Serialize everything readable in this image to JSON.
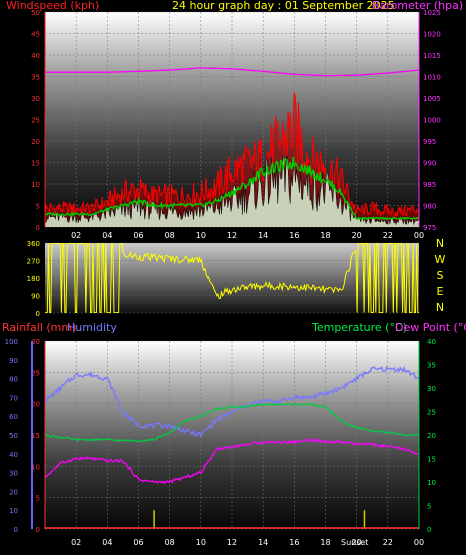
{
  "header": {
    "windspeed_label": "Windspeed (kph)",
    "title": "24 hour graph day : 01 September 2025",
    "barometer_label": "Barometer (hpa)"
  },
  "lower_header": {
    "rainfall_label": "Rainfall (mm)",
    "humidity_label": "Humidity",
    "temperature_label": "Temperature (°C)",
    "dewpoint_label": "Dew Point (°C)"
  },
  "colors": {
    "windspeed": "#ff0000",
    "gust": "#ff0000",
    "average": "#00cc00",
    "barometer": "#ff00ff",
    "direction": "#ffff00",
    "rainfall": "#ff3333",
    "humidity": "#7777ff",
    "temperature": "#00cc44",
    "dewpoint": "#ff00ff",
    "rain_bar": "#cccc00"
  },
  "chart_data": [
    {
      "type": "line",
      "x_ticks": [
        "02",
        "04",
        "06",
        "08",
        "10",
        "12",
        "14",
        "16",
        "18",
        "20",
        "22",
        "00"
      ],
      "wind_axis": {
        "ticks": [
          "0",
          "5",
          "10",
          "15",
          "20",
          "25",
          "30",
          "35",
          "40",
          "45",
          "50"
        ],
        "ylim": [
          0,
          50
        ]
      },
      "baro_axis": {
        "ticks": [
          "975",
          "980",
          "985",
          "990",
          "995",
          "1000",
          "1005",
          "1010",
          "1015",
          "1020",
          "1025"
        ],
        "ylim": [
          975,
          1025
        ]
      },
      "series": [
        {
          "name": "Windspeed (kph)",
          "role": "gust",
          "x": [
            0,
            1,
            2,
            3,
            4,
            5,
            6,
            7,
            8,
            9,
            10,
            11,
            12,
            13,
            14,
            15,
            16,
            17,
            18,
            19,
            20,
            21,
            22,
            23,
            24
          ],
          "values": [
            6,
            6,
            6,
            6,
            8,
            11,
            12,
            10,
            10,
            10,
            11,
            13,
            18,
            20,
            22,
            27,
            32,
            22,
            20,
            15,
            5,
            6,
            5,
            5,
            6
          ]
        },
        {
          "role": "average",
          "x": [
            0,
            1,
            2,
            3,
            4,
            5,
            6,
            7,
            8,
            9,
            10,
            11,
            12,
            13,
            14,
            15,
            16,
            17,
            18,
            19,
            20,
            21,
            22,
            23,
            24
          ],
          "values": [
            3,
            3,
            3,
            3,
            4,
            5,
            6,
            5,
            5,
            5,
            5,
            6,
            8,
            10,
            13,
            14,
            15,
            13,
            11,
            8,
            2,
            2,
            2,
            2,
            2
          ]
        },
        {
          "name": "Barometer (hpa)",
          "role": "barometer",
          "x": [
            0,
            2,
            4,
            6,
            8,
            10,
            12,
            14,
            16,
            18,
            20,
            22,
            24
          ],
          "values": [
            1011,
            1011,
            1011,
            1011.2,
            1011.5,
            1012,
            1011.8,
            1011.2,
            1010.5,
            1010.2,
            1010.3,
            1010.8,
            1011.5
          ]
        }
      ]
    },
    {
      "type": "line",
      "compass_labels": [
        "N",
        "W",
        "S",
        "E",
        "N"
      ],
      "y_ticks": [
        "360",
        "270",
        "180",
        "90",
        "0"
      ],
      "ylim": [
        0,
        360
      ],
      "series": [
        {
          "role": "direction",
          "x": [
            0,
            1,
            2,
            3,
            4,
            5,
            6,
            7,
            8,
            9,
            10,
            11,
            12,
            13,
            14,
            15,
            16,
            17,
            18,
            19,
            20,
            21,
            22,
            23,
            24
          ],
          "values": [
            0,
            0,
            0,
            0,
            0,
            300,
            290,
            285,
            280,
            275,
            275,
            85,
            120,
            135,
            140,
            140,
            135,
            130,
            120,
            115,
            350,
            355,
            355,
            355,
            355
          ]
        }
      ]
    },
    {
      "type": "line",
      "x_ticks": [
        "02",
        "04",
        "06",
        "08",
        "10",
        "12",
        "14",
        "16",
        "18",
        "20",
        "22",
        "00"
      ],
      "overlay_label": "Sunset",
      "humidity_axis": {
        "ticks": [
          "0",
          "10",
          "20",
          "30",
          "40",
          "50",
          "60",
          "70",
          "80",
          "90",
          "100"
        ],
        "ylim": [
          0,
          100
        ]
      },
      "rain_axis": {
        "ticks": [
          "0",
          "5",
          "10",
          "15",
          "20",
          "25",
          "30"
        ],
        "ylim": [
          0,
          30
        ]
      },
      "temp_axis": {
        "ticks": [
          "0",
          "5",
          "10",
          "15",
          "20",
          "25",
          "30",
          "35",
          "40"
        ],
        "ylim": [
          0,
          40
        ]
      },
      "series": [
        {
          "name": "Humidity",
          "x": [
            0,
            1,
            2,
            3,
            4,
            5,
            6,
            7,
            8,
            9,
            10,
            11,
            12,
            13,
            14,
            15,
            16,
            17,
            18,
            19,
            20,
            21,
            22,
            23,
            24
          ],
          "values": [
            68,
            75,
            82,
            82,
            80,
            62,
            55,
            55,
            55,
            52,
            50,
            58,
            62,
            66,
            68,
            68,
            70,
            70,
            72,
            75,
            80,
            85,
            85,
            85,
            80
          ]
        },
        {
          "name": "Temperature (°C)",
          "x": [
            0,
            1,
            2,
            3,
            4,
            5,
            6,
            7,
            8,
            9,
            10,
            11,
            12,
            13,
            14,
            15,
            16,
            17,
            18,
            19,
            20,
            21,
            22,
            23,
            24
          ],
          "values": [
            20,
            19.5,
            19,
            19,
            19,
            18.8,
            18.8,
            19,
            20.5,
            23,
            24,
            25.5,
            26,
            26,
            26.5,
            26.5,
            26.5,
            26.5,
            26,
            23,
            21.5,
            21,
            20.5,
            20,
            20
          ]
        },
        {
          "name": "Dew Point (°C)",
          "x": [
            0,
            1,
            2,
            3,
            4,
            5,
            6,
            7,
            8,
            9,
            10,
            11,
            12,
            13,
            14,
            15,
            16,
            17,
            18,
            19,
            20,
            21,
            22,
            23,
            24
          ],
          "values": [
            11,
            14,
            15,
            15,
            14.5,
            14.5,
            10.5,
            10,
            10,
            11,
            12,
            17,
            17.5,
            18,
            18.5,
            18.5,
            18.5,
            19,
            18.5,
            18.5,
            18,
            18,
            17.5,
            17,
            16
          ]
        },
        {
          "name": "Rainfall (mm)",
          "role": "rain_bars",
          "x": [
            7,
            20.5
          ],
          "values": [
            3,
            3
          ]
        }
      ]
    }
  ]
}
